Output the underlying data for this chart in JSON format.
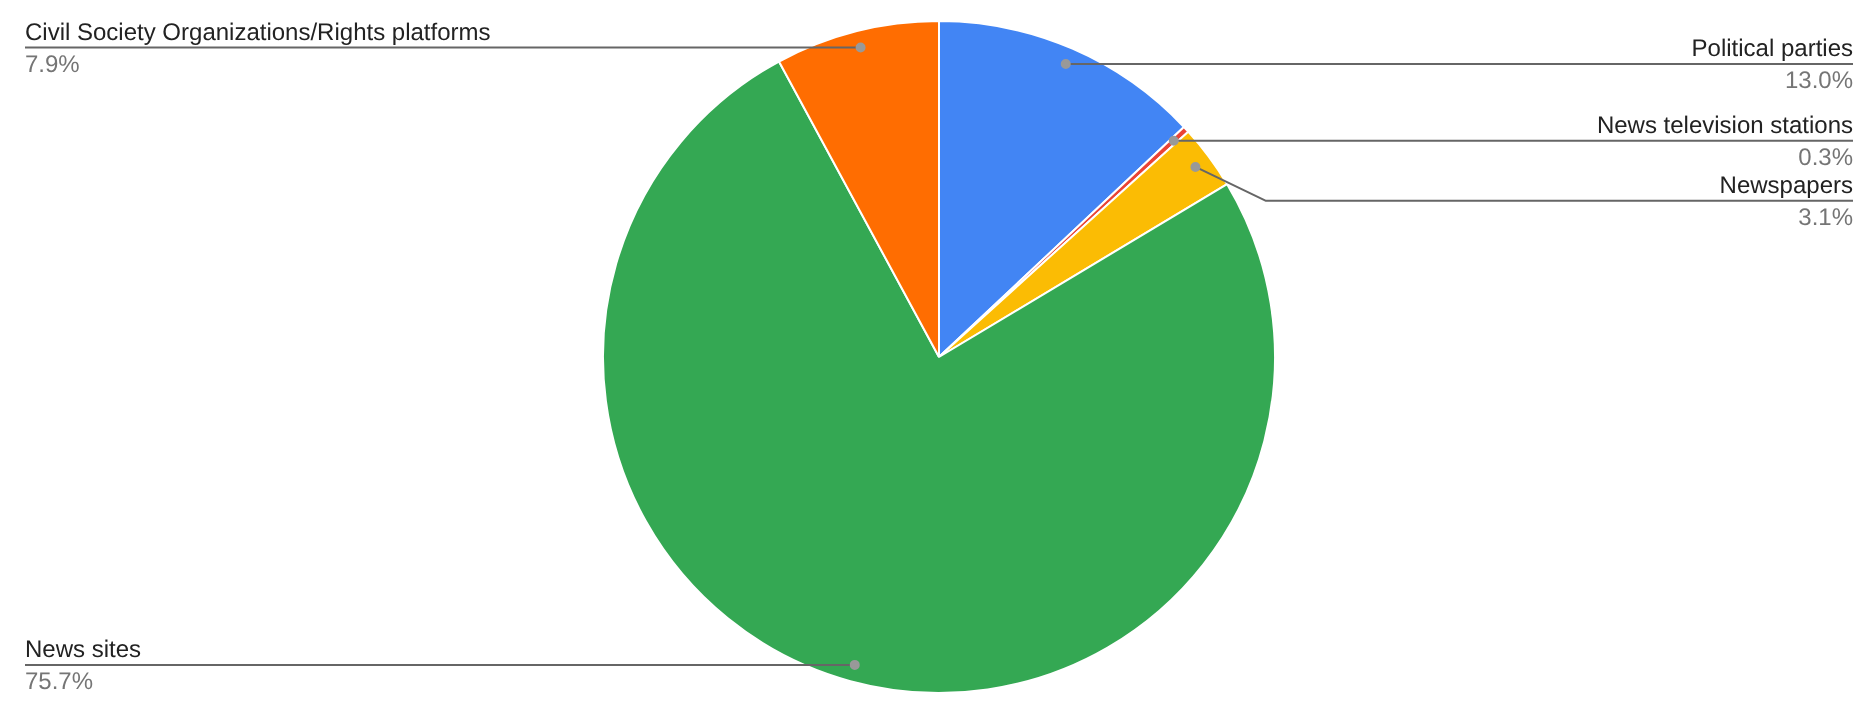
{
  "chart_data": {
    "type": "pie",
    "categories": [
      "Political parties",
      "News television stations",
      "Newspapers",
      "News sites",
      "Civil Society Organizations/Rights platforms"
    ],
    "values": [
      13.0,
      0.3,
      3.1,
      75.7,
      7.9
    ],
    "colors": [
      "#4285f4",
      "#ea4335",
      "#fbbc04",
      "#34a853",
      "#ff6d01"
    ],
    "value_labels": [
      "13.0%",
      "0.3%",
      "3.1%",
      "75.7%",
      "7.9%"
    ]
  }
}
